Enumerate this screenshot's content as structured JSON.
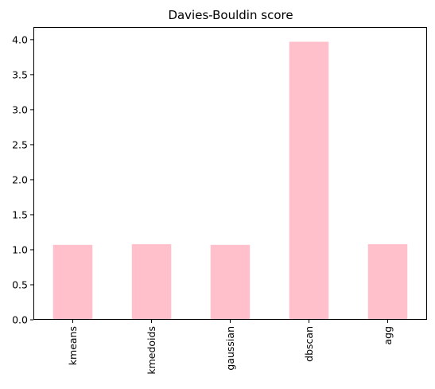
{
  "chart_data": {
    "type": "bar",
    "title": "Davies-Bouldin score",
    "xlabel": "",
    "ylabel": "",
    "categories": [
      "kmeans",
      "kmedoids",
      "gaussian",
      "dbscan",
      "agg"
    ],
    "values": [
      1.07,
      1.08,
      1.07,
      3.97,
      1.08
    ],
    "ylim": [
      0,
      4.18
    ],
    "yticks": [
      "0.0",
      "0.5",
      "1.0",
      "1.5",
      "2.0",
      "2.5",
      "3.0",
      "3.5",
      "4.0"
    ],
    "bar_color": "#ffc0cb",
    "grid": false,
    "legend": "none"
  }
}
